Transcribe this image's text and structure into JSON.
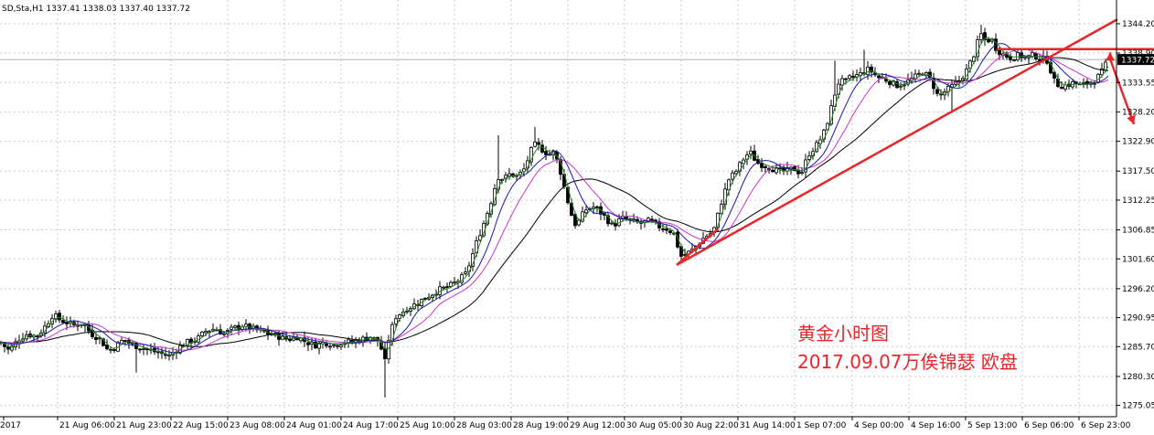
{
  "header": "SD,Sta,H1  1337.41 1338.03 1337.40 1337.72",
  "annotation": {
    "line1": "黄金小时图",
    "line2": "2017.09.07万俟锦瑟 欧盘"
  },
  "colors": {
    "candles": "#000000",
    "ma_fast": "#228b22",
    "ma_mid": "#1a1aa6",
    "ma_pink": "#cc33cc",
    "ma_slow": "#000000",
    "trend": "#e8262a",
    "grid": "#c8c8c8",
    "price_tag_bg": "#000000"
  },
  "chart_data": {
    "type": "line",
    "title": "",
    "xlabel": "",
    "ylabel": "",
    "ylim": [
      1273.0,
      1348.5
    ],
    "grid": "dashed-both",
    "y_ticks": [
      "1344.20",
      "1338.90",
      "1333.55",
      "1328.20",
      "1322.90",
      "1317.50",
      "1312.25",
      "1306.85",
      "1301.60",
      "1296.20",
      "1290.95",
      "1285.70",
      "1280.30",
      "1275.05"
    ],
    "x_ticks": [
      "2017",
      "21 Aug 06:00",
      "21 Aug 23:00",
      "22 Aug 15:00",
      "23 Aug 08:00",
      "24 Aug 01:00",
      "24 Aug 17:00",
      "25 Aug 10:00",
      "28 Aug 03:00",
      "28 Aug 19:00",
      "29 Aug 12:00",
      "30 Aug 05:00",
      "30 Aug 22:00",
      "31 Aug 14:00",
      "1 Sep 07:00",
      "4 Sep 00:00",
      "4 Sep 16:00",
      "5 Sep 13:00",
      "6 Sep 06:00",
      "6 Sep 23:00"
    ],
    "current_price": "1337.72",
    "close_path": [
      [
        0,
        1286.5
      ],
      [
        10,
        1285.0
      ],
      [
        20,
        1287.0
      ],
      [
        30,
        1288.0
      ],
      [
        40,
        1287.5
      ],
      [
        50,
        1289.5
      ],
      [
        58,
        1291.5
      ],
      [
        66,
        1290.5
      ],
      [
        74,
        1290.0
      ],
      [
        82,
        1289.5
      ],
      [
        90,
        1290.0
      ],
      [
        100,
        1288.0
      ],
      [
        110,
        1287.0
      ],
      [
        118,
        1285.0
      ],
      [
        125,
        1285.5
      ],
      [
        135,
        1287.0
      ],
      [
        145,
        1286.0
      ],
      [
        155,
        1285.5
      ],
      [
        165,
        1285.0
      ],
      [
        175,
        1284.5
      ],
      [
        185,
        1284.0
      ],
      [
        195,
        1285.5
      ],
      [
        205,
        1286.5
      ],
      [
        215,
        1287.0
      ],
      [
        225,
        1288.5
      ],
      [
        235,
        1289.0
      ],
      [
        245,
        1288.0
      ],
      [
        255,
        1289.0
      ],
      [
        265,
        1289.5
      ],
      [
        275,
        1289.0
      ],
      [
        285,
        1288.5
      ],
      [
        295,
        1288.0
      ],
      [
        305,
        1287.5
      ],
      [
        315,
        1287.0
      ],
      [
        325,
        1287.5
      ],
      [
        335,
        1286.5
      ],
      [
        345,
        1286.0
      ],
      [
        355,
        1286.5
      ],
      [
        365,
        1286.0
      ],
      [
        375,
        1286.5
      ],
      [
        385,
        1286.5
      ],
      [
        395,
        1287.0
      ],
      [
        405,
        1287.5
      ],
      [
        415,
        1286.5
      ],
      [
        421,
        1283.0
      ],
      [
        425,
        1287.0
      ],
      [
        432,
        1291.0
      ],
      [
        440,
        1292.0
      ],
      [
        450,
        1293.0
      ],
      [
        460,
        1294.0
      ],
      [
        470,
        1295.0
      ],
      [
        480,
        1296.0
      ],
      [
        490,
        1296.5
      ],
      [
        500,
        1297.5
      ],
      [
        510,
        1299.0
      ],
      [
        516,
        1302.0
      ],
      [
        522,
        1305.0
      ],
      [
        530,
        1308.5
      ],
      [
        538,
        1312.5
      ],
      [
        544,
        1316.5
      ],
      [
        550,
        1316.0
      ],
      [
        558,
        1317.0
      ],
      [
        566,
        1316.5
      ],
      [
        574,
        1318.0
      ],
      [
        580,
        1321.0
      ],
      [
        586,
        1322.5
      ],
      [
        592,
        1321.5
      ],
      [
        600,
        1320.5
      ],
      [
        606,
        1321.0
      ],
      [
        612,
        1318.0
      ],
      [
        618,
        1314.0
      ],
      [
        624,
        1310.0
      ],
      [
        630,
        1307.5
      ],
      [
        640,
        1310.5
      ],
      [
        650,
        1311.0
      ],
      [
        660,
        1309.5
      ],
      [
        670,
        1307.5
      ],
      [
        680,
        1309.0
      ],
      [
        690,
        1308.5
      ],
      [
        700,
        1308.0
      ],
      [
        710,
        1308.5
      ],
      [
        720,
        1307.5
      ],
      [
        730,
        1307.0
      ],
      [
        738,
        1306.0
      ],
      [
        744,
        1302.0
      ],
      [
        750,
        1302.5
      ],
      [
        756,
        1303.0
      ],
      [
        762,
        1304.0
      ],
      [
        770,
        1305.5
      ],
      [
        780,
        1306.5
      ],
      [
        790,
        1312.5
      ],
      [
        797,
        1316.0
      ],
      [
        805,
        1317.5
      ],
      [
        812,
        1319.5
      ],
      [
        820,
        1321.0
      ],
      [
        828,
        1319.0
      ],
      [
        836,
        1318.5
      ],
      [
        844,
        1318.0
      ],
      [
        852,
        1317.5
      ],
      [
        860,
        1317.5
      ],
      [
        868,
        1318.0
      ],
      [
        876,
        1317.0
      ],
      [
        884,
        1320.5
      ],
      [
        892,
        1322.0
      ],
      [
        900,
        1324.0
      ],
      [
        906,
        1327.0
      ],
      [
        912,
        1331.0
      ],
      [
        918,
        1334.0
      ],
      [
        924,
        1333.5
      ],
      [
        930,
        1334.5
      ],
      [
        940,
        1335.0
      ],
      [
        950,
        1336.0
      ],
      [
        960,
        1334.5
      ],
      [
        970,
        1334.0
      ],
      [
        980,
        1333.0
      ],
      [
        990,
        1333.5
      ],
      [
        1000,
        1334.5
      ],
      [
        1010,
        1335.5
      ],
      [
        1018,
        1334.0
      ],
      [
        1026,
        1331.0
      ],
      [
        1034,
        1332.0
      ],
      [
        1042,
        1333.0
      ],
      [
        1050,
        1334.0
      ],
      [
        1058,
        1336.0
      ],
      [
        1066,
        1339.0
      ],
      [
        1072,
        1342.5
      ],
      [
        1078,
        1341.0
      ],
      [
        1084,
        1341.5
      ],
      [
        1090,
        1339.5
      ],
      [
        1098,
        1338.5
      ],
      [
        1106,
        1338.0
      ],
      [
        1114,
        1338.5
      ],
      [
        1122,
        1338.0
      ],
      [
        1130,
        1338.5
      ],
      [
        1138,
        1338.0
      ],
      [
        1146,
        1337.5
      ],
      [
        1152,
        1334.0
      ],
      [
        1158,
        1333.0
      ],
      [
        1166,
        1333.0
      ],
      [
        1174,
        1333.5
      ],
      [
        1182,
        1333.0
      ],
      [
        1190,
        1333.5
      ],
      [
        1198,
        1334.0
      ],
      [
        1205,
        1335.5
      ],
      [
        1212,
        1337.72
      ]
    ],
    "ma_fast_lag": 3,
    "ma_mid_lag": 8,
    "ma_pink_lag": 14,
    "ma_slow_lag": 28,
    "trendlines": [
      {
        "from": [
          740,
          1300.5
        ],
        "to": [
          1222,
          1345.0
        ]
      },
      {
        "from": [
          740,
          1300.5
        ],
        "to": [
          785,
          1307.0
        ]
      },
      {
        "from": [
          1090,
          1339.6
        ],
        "to": [
          1262,
          1339.6
        ]
      }
    ],
    "arrows": [
      {
        "from": [
          1214,
          1337.8
        ],
        "to": [
          1240,
          1326.0
        ]
      },
      {
        "from": [
          1214,
          1337.8
        ],
        "to": [
          1214,
          1339.0
        ]
      }
    ]
  }
}
